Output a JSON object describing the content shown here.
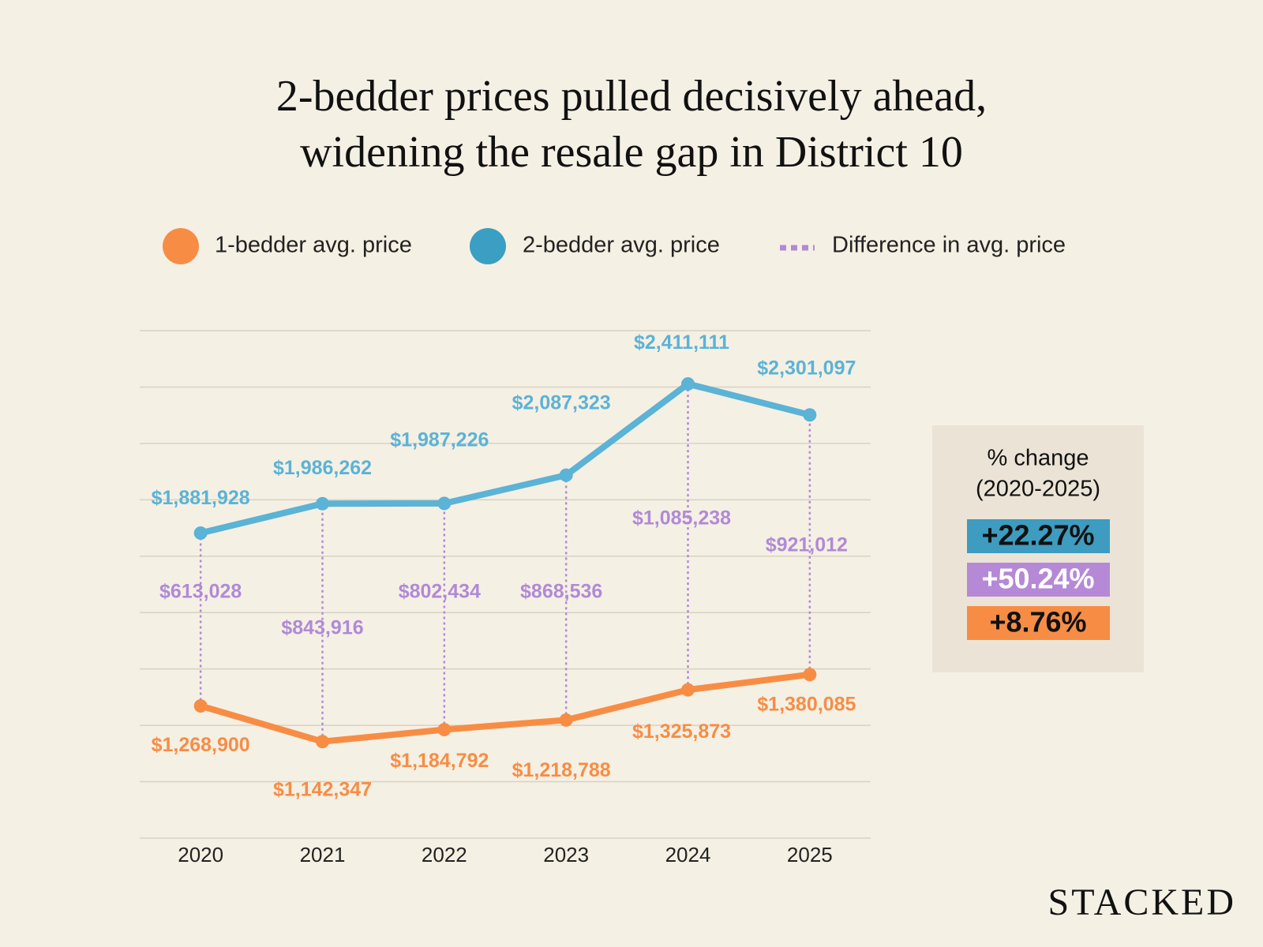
{
  "chart_data": {
    "type": "line",
    "title": [
      "2-bedder prices pulled decisively ahead,",
      "widening the resale gap in District 10"
    ],
    "categories": [
      "2020",
      "2021",
      "2022",
      "2023",
      "2024",
      "2025"
    ],
    "series": [
      {
        "name": "1-bedder avg. price",
        "color": "#f78d45",
        "values": [
          1268900,
          1142347,
          1184792,
          1218788,
          1325873,
          1380085
        ],
        "value_labels": [
          "$1,268,900",
          "$1,142,347",
          "$1,184,792",
          "$1,218,788",
          "$1,325,873",
          "$1,380,085"
        ]
      },
      {
        "name": "2-bedder avg. price",
        "color": "#5bb3d6",
        "values": [
          1881928,
          1986262,
          1987226,
          2087323,
          2411111,
          2301097
        ],
        "value_labels": [
          "$1,881,928",
          "$1,986,262",
          "$1,987,226",
          "$2,087,323",
          "$2,411,111",
          "$2,301,097"
        ]
      }
    ],
    "difference": {
      "name": "Difference in avg. price",
      "color": "#b08ad6",
      "values": [
        613028,
        843916,
        802434,
        868536,
        1085238,
        921012
      ],
      "value_labels": [
        "$613,028",
        "$843,916",
        "$802,434",
        "$868,536",
        "$1,085,238",
        "$921,012"
      ]
    },
    "ylim": [
      800000,
      2600000
    ],
    "yticks": [
      800000,
      1000000,
      1200000,
      1400000,
      1600000,
      1800000,
      2000000,
      2200000,
      2400000,
      2600000
    ],
    "show_ytick_labels": false,
    "grid": true,
    "summary": {
      "title": [
        "% change",
        "(2020-2025)"
      ],
      "items": [
        {
          "value": 22.27,
          "label": "+22.27%",
          "color": "#3d9cc0",
          "text_color": "#111111"
        },
        {
          "value": 50.24,
          "label": "+50.24%",
          "color": "#b589d6",
          "text_color": "#ffffff"
        },
        {
          "value": 8.76,
          "label": "+8.76%",
          "color": "#f78d45",
          "text_color": "#111111"
        }
      ]
    },
    "brand": "STACKED"
  }
}
